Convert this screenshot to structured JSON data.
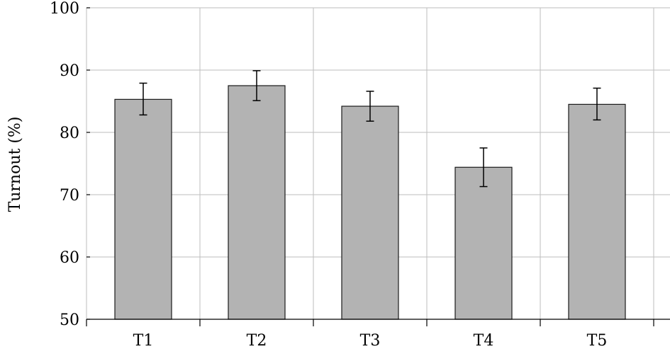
{
  "chart_data": {
    "type": "bar",
    "categories": [
      "T1",
      "T2",
      "T3",
      "T4",
      "T5"
    ],
    "values": [
      85.3,
      87.5,
      84.2,
      74.4,
      84.5
    ],
    "error_low": [
      82.8,
      85.1,
      81.8,
      71.3,
      82.0
    ],
    "error_high": [
      87.9,
      89.9,
      86.6,
      77.5,
      87.1
    ],
    "title": "",
    "xlabel": "",
    "ylabel": "Turnout (%)",
    "ylim": [
      50,
      100
    ],
    "yticks": [
      "50",
      "60",
      "70",
      "80",
      "90",
      "100"
    ],
    "grid": true,
    "bar_color": "#b3b3b3"
  }
}
